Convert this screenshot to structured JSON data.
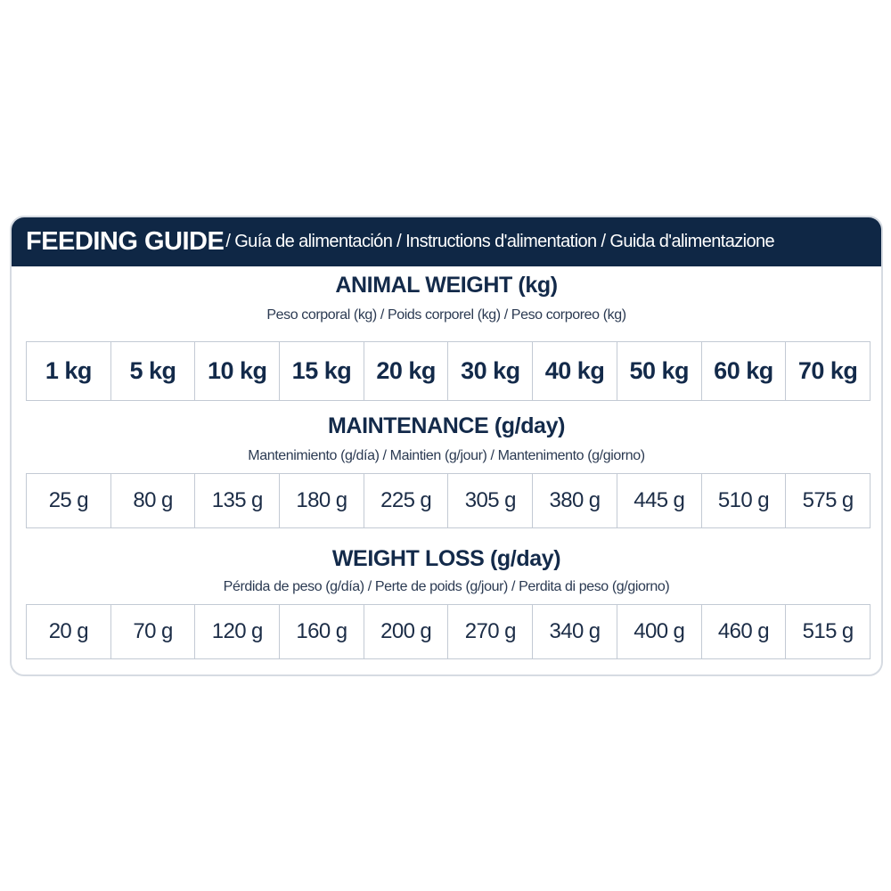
{
  "header": {
    "title": "FEEDING GUIDE",
    "subtitle": " / Guía de alimentación / Instructions d'alimentation / Guida d'alimentazione"
  },
  "animal_weight": {
    "title": "ANIMAL WEIGHT (kg)",
    "subtitle": "Peso corporal (kg) / Poids corporel (kg) / Peso corporeo (kg)",
    "values": [
      "1 kg",
      "5 kg",
      "10 kg",
      "15 kg",
      "20 kg",
      "30 kg",
      "40 kg",
      "50 kg",
      "60 kg",
      "70 kg"
    ]
  },
  "maintenance": {
    "title": "MAINTENANCE (g/day)",
    "subtitle": "Mantenimiento (g/día) / Maintien (g/jour) / Mantenimento (g/giorno)",
    "values": [
      "25 g",
      "80 g",
      "135 g",
      "180 g",
      "225 g",
      "305 g",
      "380 g",
      "445 g",
      "510 g",
      "575 g"
    ]
  },
  "weight_loss": {
    "title": "WEIGHT LOSS (g/day)",
    "subtitle": "Pérdida de peso (g/día) / Perte de poids (g/jour) / Perdita di peso (g/giorno)",
    "values": [
      "20 g",
      "70 g",
      "120 g",
      "160 g",
      "200 g",
      "270 g",
      "340 g",
      "400 g",
      "460 g",
      "515 g"
    ]
  }
}
